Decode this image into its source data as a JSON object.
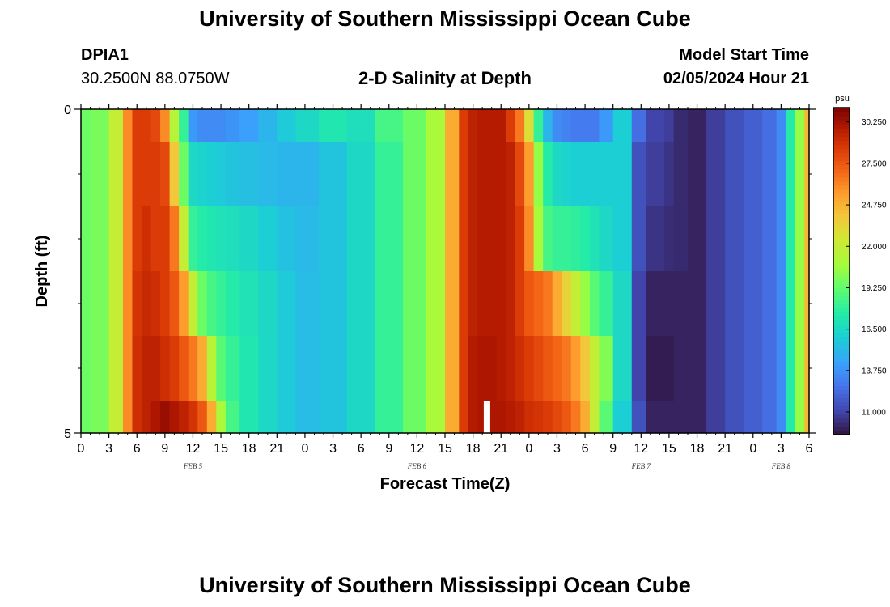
{
  "header": {
    "title": "University of Southern Mississippi Ocean Cube",
    "station_id": "DPIA1",
    "station_coords": "30.2500N  88.0750W",
    "chart_title": "2-D Salinity at Depth",
    "start_label": "Model Start Time",
    "start_value": "02/05/2024 Hour 21"
  },
  "footer": {
    "title": "University of Southern Mississippi Ocean Cube"
  },
  "chart_data": {
    "type": "heatmap",
    "title": "2-D Salinity at Depth",
    "xlabel": "Forecast Time(Z)",
    "ylabel": "Depth (ft)",
    "x_tick_labels": [
      "0",
      "3",
      "6",
      "9",
      "12",
      "15",
      "18",
      "21",
      "0",
      "3",
      "6",
      "9",
      "12",
      "15",
      "18",
      "21",
      "0",
      "3",
      "6",
      "9",
      "12",
      "15",
      "18",
      "21",
      "0",
      "3",
      "6"
    ],
    "x_hours_since_feb5_00z": [
      0,
      78
    ],
    "date_labels": [
      {
        "label": "FEB 5",
        "hour": 12
      },
      {
        "label": "FEB 6",
        "hour": 36
      },
      {
        "label": "FEB 7",
        "hour": 60
      },
      {
        "label": "FEB 8",
        "hour": 75
      }
    ],
    "y_range_ft": [
      0,
      5
    ],
    "y_tick_labels": [
      "0",
      "5"
    ],
    "colorbar": {
      "unit": "psu",
      "range": [
        9.5,
        31.2
      ],
      "tick_labels": [
        "30.250",
        "27.500",
        "24.750",
        "22.000",
        "19.250",
        "16.500",
        "13.750",
        "11.000"
      ],
      "tick_values": [
        30.25,
        27.5,
        24.75,
        22.0,
        19.25,
        16.5,
        13.75,
        11.0
      ]
    },
    "anomaly_marker_hour": 43.5,
    "depth_bands_ft": [
      [
        0,
        0.5
      ],
      [
        0.5,
        1.5
      ],
      [
        1.5,
        2.5
      ],
      [
        2.5,
        3.5
      ],
      [
        3.5,
        4.5
      ],
      [
        4.5,
        5
      ]
    ],
    "hours": [
      0,
      2,
      4,
      5,
      6,
      7,
      8,
      9,
      10,
      11,
      12,
      13,
      14,
      15,
      16,
      18,
      20,
      22,
      24,
      27,
      30,
      33,
      36,
      38,
      40,
      41,
      42,
      43,
      44,
      45,
      46,
      47,
      48,
      49,
      50,
      51,
      52,
      53,
      54,
      55,
      56,
      58,
      60,
      61,
      62,
      63,
      64,
      66,
      68,
      70,
      72,
      74,
      75,
      76,
      77,
      78
    ],
    "salinity_psu": [
      [
        19.5,
        19.8,
        22.0,
        26.0,
        28.5,
        28.5,
        28.0,
        26.0,
        21.5,
        18.0,
        14.0,
        13.5,
        13.5,
        13.5,
        13.8,
        14.2,
        15.0,
        15.8,
        16.5,
        17.2,
        16.8,
        18.5,
        19.5,
        21.0,
        25.0,
        28.5,
        29.5,
        29.8,
        29.8,
        29.8,
        28.5,
        26.5,
        23.0,
        18.0,
        15.0,
        13.5,
        13.2,
        13.0,
        13.0,
        13.0,
        14.0,
        16.0,
        12.5,
        11.0,
        11.0,
        10.8,
        10.2,
        10.0,
        10.8,
        11.5,
        12.0,
        12.5,
        13.5,
        17.5,
        20.5,
        24.5
      ],
      [
        19.5,
        19.8,
        22.0,
        26.0,
        28.5,
        28.5,
        28.5,
        28.0,
        24.0,
        19.5,
        16.5,
        16.2,
        16.0,
        15.8,
        15.6,
        15.4,
        15.2,
        15.0,
        15.0,
        15.6,
        16.5,
        18.0,
        19.5,
        21.0,
        25.0,
        28.5,
        29.5,
        29.8,
        29.8,
        29.8,
        29.5,
        28.0,
        25.5,
        20.5,
        17.5,
        16.5,
        16.2,
        16.0,
        16.0,
        16.0,
        16.0,
        16.0,
        11.5,
        10.8,
        10.8,
        10.5,
        10.2,
        10.0,
        10.8,
        11.5,
        12.0,
        12.5,
        13.5,
        17.5,
        20.5,
        24.5
      ],
      [
        19.5,
        19.8,
        22.0,
        26.0,
        28.5,
        29.0,
        28.5,
        28.5,
        26.5,
        22.0,
        18.0,
        17.5,
        17.2,
        17.0,
        16.8,
        16.5,
        16.0,
        15.5,
        15.2,
        15.6,
        16.5,
        18.0,
        19.5,
        21.0,
        25.0,
        28.5,
        29.5,
        29.8,
        29.8,
        29.8,
        29.5,
        28.5,
        26.0,
        21.0,
        18.5,
        18.0,
        18.0,
        17.8,
        17.5,
        17.0,
        16.5,
        16.0,
        11.5,
        10.5,
        10.5,
        10.3,
        10.2,
        10.0,
        10.8,
        11.5,
        12.0,
        12.5,
        13.5,
        17.5,
        20.5,
        24.5
      ],
      [
        19.5,
        19.8,
        22.0,
        26.0,
        28.8,
        29.2,
        29.0,
        28.5,
        27.5,
        25.5,
        22.0,
        19.5,
        18.5,
        18.0,
        17.5,
        17.0,
        16.5,
        15.8,
        15.3,
        15.6,
        16.5,
        18.0,
        19.5,
        21.0,
        25.0,
        28.5,
        29.5,
        29.8,
        29.8,
        29.8,
        29.5,
        28.5,
        27.5,
        27.0,
        26.5,
        25.0,
        23.5,
        22.0,
        20.5,
        19.0,
        18.0,
        16.5,
        11.0,
        10.0,
        10.0,
        10.0,
        10.0,
        10.0,
        10.8,
        11.5,
        12.0,
        12.5,
        13.5,
        17.5,
        20.5,
        24.5
      ],
      [
        19.5,
        19.8,
        22.0,
        26.0,
        29.0,
        29.5,
        29.5,
        29.0,
        28.5,
        27.5,
        26.5,
        25.0,
        21.5,
        19.0,
        18.0,
        17.2,
        16.5,
        15.8,
        15.3,
        15.6,
        16.5,
        18.0,
        19.5,
        21.0,
        25.0,
        28.5,
        29.8,
        30.0,
        30.0,
        29.8,
        29.5,
        29.0,
        28.5,
        28.0,
        27.5,
        27.0,
        26.5,
        25.5,
        24.0,
        22.0,
        20.0,
        16.5,
        11.0,
        9.8,
        9.8,
        9.8,
        10.0,
        10.0,
        10.8,
        11.5,
        12.0,
        12.5,
        13.5,
        17.5,
        20.5,
        24.5
      ],
      [
        19.5,
        19.8,
        22.0,
        26.0,
        29.0,
        29.5,
        30.0,
        30.5,
        30.0,
        29.5,
        28.8,
        27.5,
        25.0,
        21.0,
        18.5,
        17.2,
        16.5,
        15.8,
        15.3,
        15.6,
        16.5,
        18.0,
        19.5,
        21.0,
        25.0,
        28.5,
        29.8,
        30.0,
        30.0,
        30.0,
        29.8,
        29.5,
        29.0,
        28.8,
        28.5,
        28.0,
        27.5,
        26.5,
        25.0,
        22.0,
        19.0,
        16.0,
        11.5,
        10.0,
        10.0,
        10.0,
        10.0,
        10.0,
        10.8,
        11.5,
        12.0,
        12.5,
        13.5,
        17.5,
        20.5,
        24.5
      ]
    ]
  }
}
